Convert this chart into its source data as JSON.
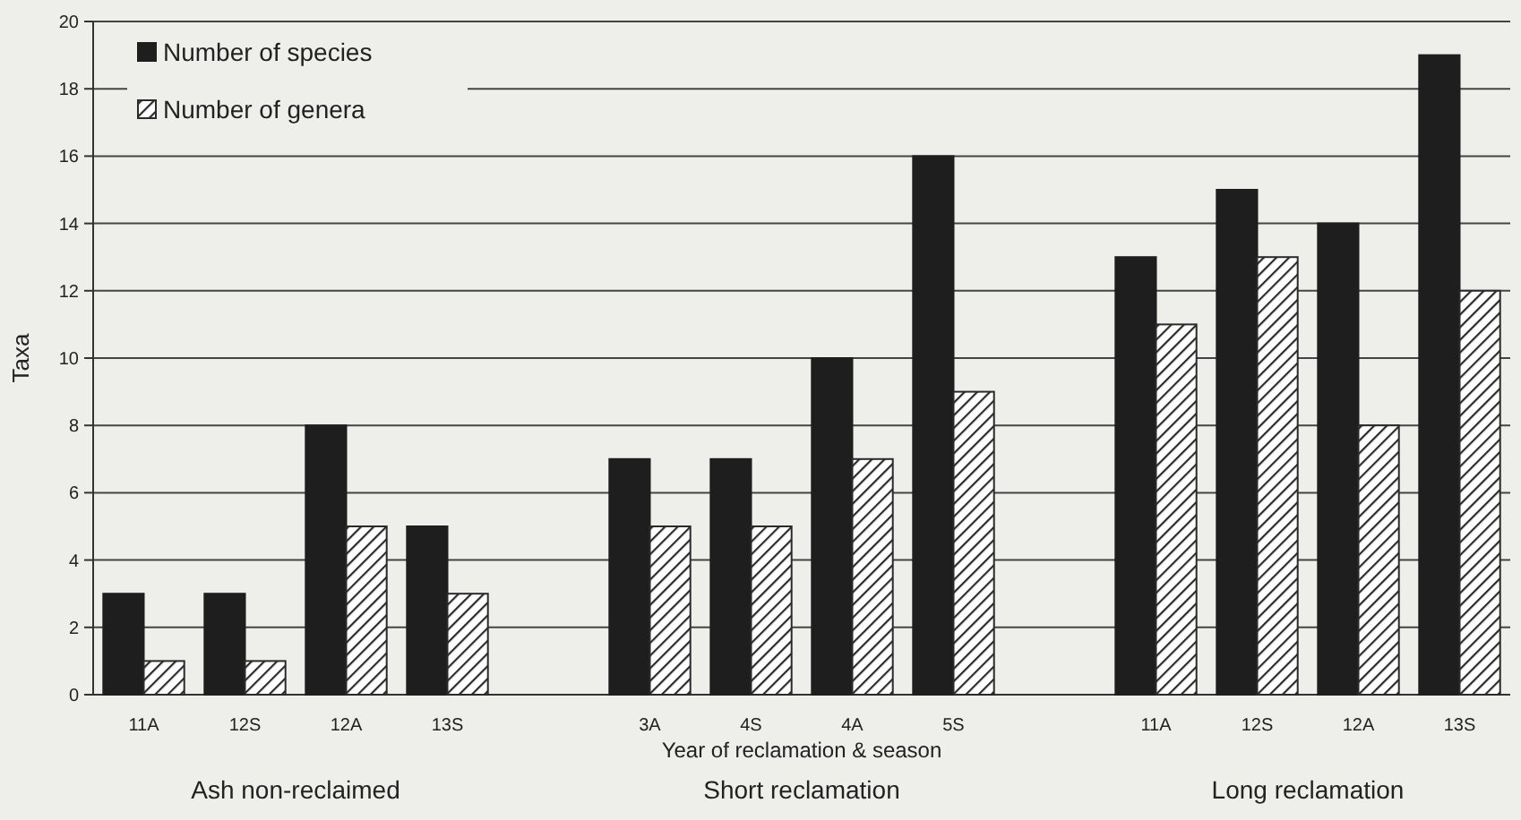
{
  "chart_data": {
    "type": "bar",
    "xlabel": "Year of reclamation & season",
    "ylabel": "Taxa",
    "categories": [
      "11A",
      "12S",
      "12A",
      "13S",
      null,
      "3A",
      "4S",
      "4A",
      "5S",
      null,
      "11A",
      "12S",
      "12A",
      "13S"
    ],
    "series": [
      {
        "name": "Number of species",
        "color": "#1e1e1e",
        "values": [
          3,
          3,
          8,
          5,
          null,
          7,
          7,
          10,
          16,
          null,
          13,
          15,
          14,
          19
        ]
      },
      {
        "name": "Number of genera",
        "color": "#2a2a2a",
        "values": [
          1,
          1,
          5,
          3,
          null,
          5,
          5,
          7,
          9,
          null,
          11,
          13,
          8,
          12
        ]
      }
    ],
    "ylim": [
      0,
      20
    ],
    "yticks": [
      0,
      2,
      4,
      6,
      8,
      10,
      12,
      14,
      16,
      18,
      20
    ],
    "grid": "y",
    "legend": "top left",
    "annotations": [
      "Ash non-reclaimed",
      "Short reclamation",
      "Long reclamation"
    ]
  }
}
